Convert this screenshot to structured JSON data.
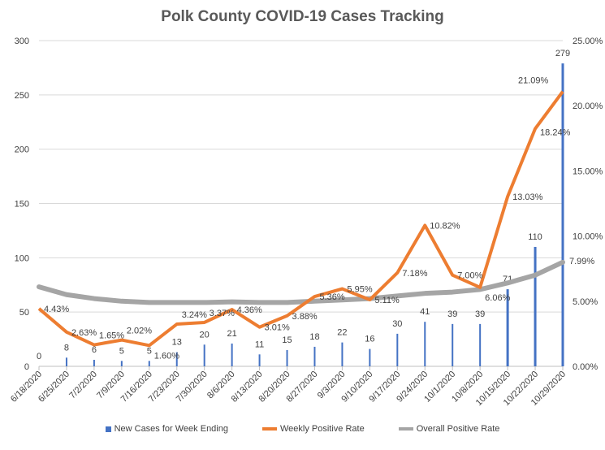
{
  "chart_data": {
    "type": "bar+line",
    "title": "Polk County COVID-19 Cases Tracking",
    "categories": [
      "6/18/2020",
      "6/25/2020",
      "7/2/2020",
      "7/9/2020",
      "7/16/2020",
      "7/23/2020",
      "7/30/2020",
      "8/6/2020",
      "8/13/2020",
      "8/20/2020",
      "8/27/2020",
      "9/3/2020",
      "9/10/2020",
      "9/17/2020",
      "9/24/2020",
      "10/1/2020",
      "10/8/2020",
      "10/15/2020",
      "10/22/2020",
      "10/29/2020"
    ],
    "series": [
      {
        "name": "New Cases for Week Ending",
        "type": "bar",
        "axis": "left",
        "color": "#4472c4",
        "values": [
          0,
          8,
          6,
          5,
          5,
          13,
          20,
          21,
          11,
          15,
          18,
          22,
          16,
          30,
          41,
          39,
          39,
          71,
          110,
          279
        ]
      },
      {
        "name": "Weekly Positive Rate",
        "type": "line",
        "axis": "right",
        "color": "#ed7d31",
        "values": [
          4.43,
          2.63,
          1.65,
          2.02,
          1.6,
          3.24,
          3.37,
          4.36,
          3.01,
          3.88,
          5.36,
          5.95,
          5.11,
          7.18,
          10.82,
          7.0,
          6.06,
          13.03,
          18.24,
          21.09
        ],
        "labels": [
          "4.43%",
          "2.63%",
          "1.65%",
          "2.02%",
          "1.60%",
          "3.24%",
          "3.37%",
          "4.36%",
          "3.01%",
          "3.88%",
          "5.36%",
          "5.95%",
          "5.11%",
          "7.18%",
          "10.82%",
          "7.00%",
          "6.06%",
          "13.03%",
          "18.24%",
          "21.09%"
        ]
      },
      {
        "name": "Overall Positive Rate",
        "type": "line",
        "axis": "right",
        "color": "#a5a5a5",
        "values": [
          6.1,
          5.5,
          5.2,
          5.0,
          4.9,
          4.9,
          4.9,
          4.95,
          4.9,
          4.9,
          5.0,
          5.1,
          5.2,
          5.4,
          5.6,
          5.7,
          5.9,
          6.4,
          7.0,
          7.99
        ],
        "labels": [
          "7.99%"
        ]
      }
    ],
    "yleft": {
      "ticks": [
        0,
        50,
        100,
        150,
        200,
        250,
        300
      ],
      "lim": [
        0,
        300
      ]
    },
    "yright": {
      "ticks": [
        "0.00%",
        "5.00%",
        "10.00%",
        "15.00%",
        "20.00%",
        "25.00%"
      ],
      "lim": [
        0,
        25
      ]
    },
    "grid": true,
    "legend": "bottom"
  }
}
